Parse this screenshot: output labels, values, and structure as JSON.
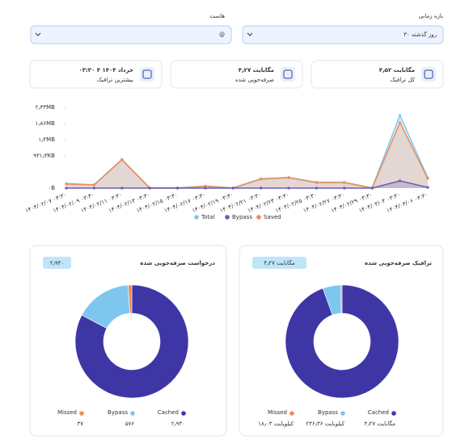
{
  "filters": [
    {
      "label": "بازه زمانی",
      "value": "۳۰ روز گذشته"
    },
    {
      "label": "هاست",
      "value": "@"
    }
  ],
  "cards": [
    {
      "value": "۴٫۵۲ مگابایت",
      "label": "کل ترافیک"
    },
    {
      "value": "۴٫۲۷ مگابایت",
      "label": "صرفه‌جویی شده"
    },
    {
      "value": "۰۳:۳۰ ۴ خرداد ۱۴۰۴",
      "label": "بیشترین ترافیک"
    }
  ],
  "chart_data": [
    {
      "type": "area",
      "categories": [
        "۱۴۰۴/۰۲/۰۷ ۰۳:۳۰",
        "۱۴۰۴/۰۲/۰۹ ۰۳:۳۰",
        "۱۴۰۴/۰۲/۱۱ ۰۳:۳۰",
        "۱۴۰۴/۰۲/۱۳ ۰۳:۳۰",
        "۱۴۰۴/۰۲/۱۵ ۰۳:۳۰",
        "۱۴۰۴/۰۲/۱۷ ۰۳:۳۰",
        "۱۴۰۴/۰۲/۱۹ ۰۳:۳۰",
        "۱۴۰۴/۰۲/۲۱ ۰۳:۳۰",
        "۱۴۰۴/۰۲/۲۳ ۰۳:۳۰",
        "۱۴۰۴/۰۲/۲۵ ۰۳:۳۰",
        "۱۴۰۴/۰۲/۲۷ ۰۳:۳۰",
        "۱۴۰۴/۰۲/۲۹ ۰۳:۳۰",
        "۱۴۰۴/۰۳/۰۴ ۰۳:۳۰",
        "۱۴۰۴/۰۳/۰۶ ۰۳:۳۰"
      ],
      "series": [
        {
          "name": "Total",
          "color": "#7ec6ee",
          "values": [
            0.13,
            0.1,
            0.83,
            0.01,
            0.01,
            0.06,
            0.01,
            0.27,
            0.31,
            0.17,
            0.17,
            0.01,
            2.1,
            0.3
          ]
        },
        {
          "name": "Bypass",
          "color": "#6a5bb5",
          "values": [
            0,
            0,
            0,
            0,
            0,
            0,
            0,
            0,
            0,
            0,
            0,
            0,
            0.21,
            0.02
          ]
        },
        {
          "name": "Saved",
          "color": "#f08a5a",
          "values": [
            0.12,
            0.09,
            0.82,
            0,
            0,
            0.05,
            0,
            0.26,
            0.3,
            0.16,
            0.16,
            0,
            1.89,
            0.28
          ]
        }
      ],
      "ylim": [
        0,
        2.33
      ],
      "yticks": [
        {
          "value": 0,
          "label": "۰B"
        },
        {
          "value": 0.93,
          "label": "۹۳۱٫۳KB"
        },
        {
          "value": 1.4,
          "label": "۱٫۴MB"
        },
        {
          "value": 1.86,
          "label": "۱٫۸۶MB"
        },
        {
          "value": 2.33,
          "label": "۲٫۳۳MB"
        }
      ],
      "grid": false
    },
    {
      "type": "donut",
      "title": "ترافیک صرفه‌جویی شده",
      "badge": "۴٫۲۷ مگابایت",
      "categories": [
        "Cached",
        "Bypass",
        "Missed"
      ],
      "colors": [
        "#3f36a6",
        "#7ec6ee",
        "#f08a5a"
      ],
      "values": [
        4372.5,
        236.36,
        18.03
      ],
      "value_labels": [
        "۴٫۲۷ مگابایت",
        "۲۳۶٫۳۶ کیلوبایت",
        "۱۸٫۰۳ کیلوبایت"
      ]
    },
    {
      "type": "donut",
      "title": "درخواست صرفه‌جویی شده",
      "badge": "۲٫۹۴۰",
      "categories": [
        "Cached",
        "Bypass",
        "Missed"
      ],
      "colors": [
        "#3f36a6",
        "#7ec6ee",
        "#f08a5a"
      ],
      "values": [
        2940,
        576,
        37
      ],
      "value_labels": [
        "۲٫۹۴۰",
        "۵۷۶",
        "۳۷"
      ]
    }
  ]
}
